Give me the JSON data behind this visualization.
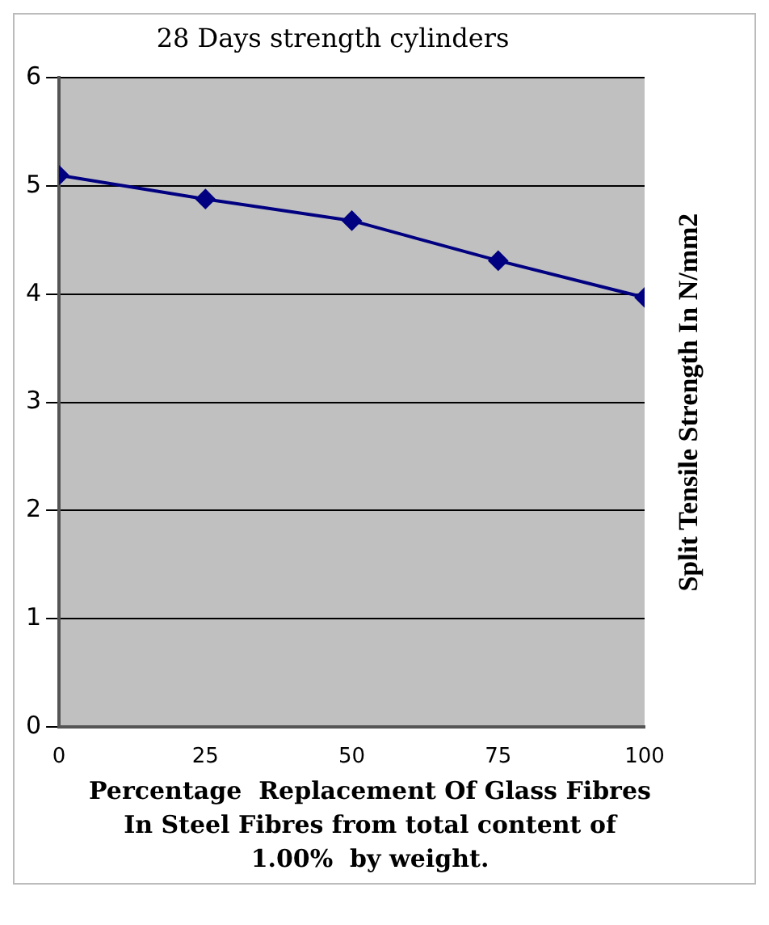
{
  "chart_data": {
    "type": "line",
    "title": "28 Days strength cylinders",
    "xlabel": "Percentage  Replacement Of Glass Fibres In Steel Fibres from total content of 1.00%  by weight.",
    "ylabel": "Split Tensile Strength In N/mm2",
    "x": [
      0,
      25,
      50,
      75,
      100
    ],
    "series": [
      {
        "color": "#000080",
        "values": [
          5.1,
          4.88,
          4.68,
          4.31,
          3.97
        ]
      }
    ],
    "xlim": [
      0,
      100
    ],
    "xticks": [
      0,
      25,
      50,
      75,
      100
    ],
    "ylim": [
      0,
      6
    ],
    "yticks": [
      0,
      1,
      2,
      3,
      4,
      5,
      6
    ],
    "grid": "y",
    "legend": false,
    "marker": "diamond",
    "line_style": "solid"
  }
}
